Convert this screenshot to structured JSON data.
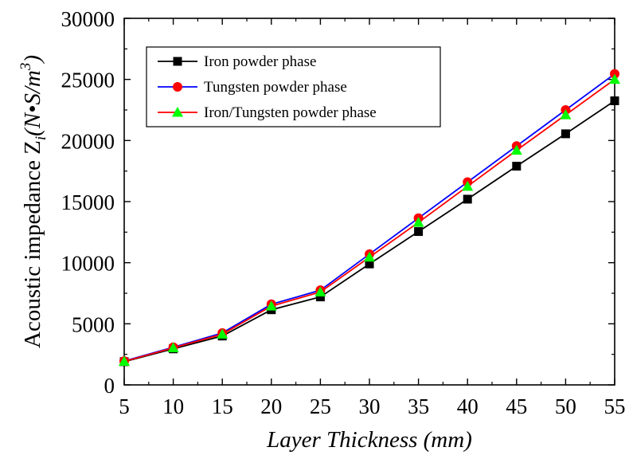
{
  "chart_data": {
    "type": "line",
    "xlabel": "Layer Thickness (mm)",
    "ylabel": {
      "prefix": "Acoustic impedance Z",
      "subscript": "i",
      "unit_open": "(N•S/m",
      "superscript": "3",
      "unit_close": ")"
    },
    "x": [
      5,
      10,
      15,
      20,
      25,
      30,
      35,
      40,
      45,
      50,
      55
    ],
    "xlim": [
      5,
      55
    ],
    "ylim": [
      0,
      30000
    ],
    "xticks": [
      "5",
      "10",
      "15",
      "20",
      "25",
      "30",
      "35",
      "40",
      "45",
      "50",
      "55"
    ],
    "yticks": [
      "0",
      "5000",
      "10000",
      "15000",
      "20000",
      "25000",
      "30000"
    ],
    "series": [
      {
        "name": "Iron powder phase",
        "color": "#000000",
        "marker": "square",
        "values": [
          1900,
          2950,
          4000,
          6150,
          7200,
          9900,
          12550,
          15200,
          17900,
          20550,
          23250
        ]
      },
      {
        "name": "Tungsten powder phase",
        "color": "#0000ff",
        "marker_color": "#ff0000",
        "marker": "circle",
        "values": [
          1950,
          3080,
          4250,
          6600,
          7750,
          10700,
          13650,
          16600,
          19550,
          22500,
          25450
        ]
      },
      {
        "name": "Iron/Tungsten powder phase",
        "color": "#ff0000",
        "marker_color": "#00ff00",
        "marker": "triangle",
        "values": [
          1920,
          3030,
          4150,
          6450,
          7600,
          10450,
          13300,
          16250,
          19200,
          22100,
          25000
        ]
      }
    ],
    "legend_position": "top-left",
    "grid": false
  }
}
